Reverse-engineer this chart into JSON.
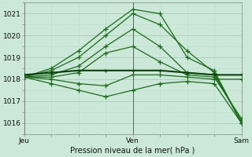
{
  "bg_color": "#cce8d8",
  "plot_bg": "#cce8d8",
  "grid_color_major": "#aaccb8",
  "grid_color_minor": "#bbddc8",
  "line_color": "#1a6b1a",
  "line_color_dark": "#0a400a",
  "title": "Pression niveau de la mer( hPa )",
  "xlabel_jeu": "Jeu",
  "xlabel_ven": "Ven",
  "xlabel_sam": "Sam",
  "ylim": [
    1015.5,
    1021.5
  ],
  "yticks": [
    1016,
    1017,
    1018,
    1019,
    1020,
    1021
  ],
  "xlim": [
    0,
    48
  ],
  "xtick_major": [
    0,
    24,
    48
  ],
  "series": [
    {
      "x": [
        0,
        6,
        12,
        18,
        24,
        30,
        36,
        42,
        48
      ],
      "y": [
        1018.1,
        1018.5,
        1019.3,
        1020.3,
        1021.2,
        1021.0,
        1019.0,
        1018.4,
        1016.0
      ]
    },
    {
      "x": [
        0,
        6,
        12,
        18,
        24,
        30,
        36,
        42,
        48
      ],
      "y": [
        1018.1,
        1018.4,
        1019.0,
        1020.0,
        1021.0,
        1020.5,
        1019.3,
        1018.3,
        1016.0
      ]
    },
    {
      "x": [
        0,
        6,
        12,
        18,
        24,
        30,
        36,
        42,
        48
      ],
      "y": [
        1018.1,
        1018.2,
        1018.6,
        1019.5,
        1020.3,
        1019.5,
        1018.3,
        1018.2,
        1016.1
      ]
    },
    {
      "x": [
        0,
        6,
        12,
        18,
        24,
        30,
        36,
        42,
        48
      ],
      "y": [
        1018.1,
        1018.1,
        1018.3,
        1019.2,
        1019.5,
        1018.8,
        1018.2,
        1018.1,
        1016.2
      ]
    },
    {
      "x": [
        0,
        6,
        12,
        18,
        24,
        30,
        36,
        42,
        48
      ],
      "y": [
        1018.1,
        1018.0,
        1017.8,
        1017.7,
        1018.2,
        1018.2,
        1018.1,
        1018.0,
        1018.0
      ]
    },
    {
      "x": [
        0,
        6,
        12,
        18,
        24,
        30,
        36,
        42,
        48
      ],
      "y": [
        1018.1,
        1017.8,
        1017.5,
        1017.2,
        1017.5,
        1017.8,
        1017.9,
        1017.8,
        1016.0
      ]
    }
  ],
  "dark_series": [
    {
      "x": [
        0,
        6,
        12,
        18,
        24,
        30,
        36,
        42,
        48
      ],
      "y": [
        1018.2,
        1018.3,
        1018.4,
        1018.4,
        1018.4,
        1018.4,
        1018.3,
        1018.2,
        1018.2
      ]
    }
  ],
  "marker": "+",
  "markersize": 4,
  "linewidth": 0.9
}
